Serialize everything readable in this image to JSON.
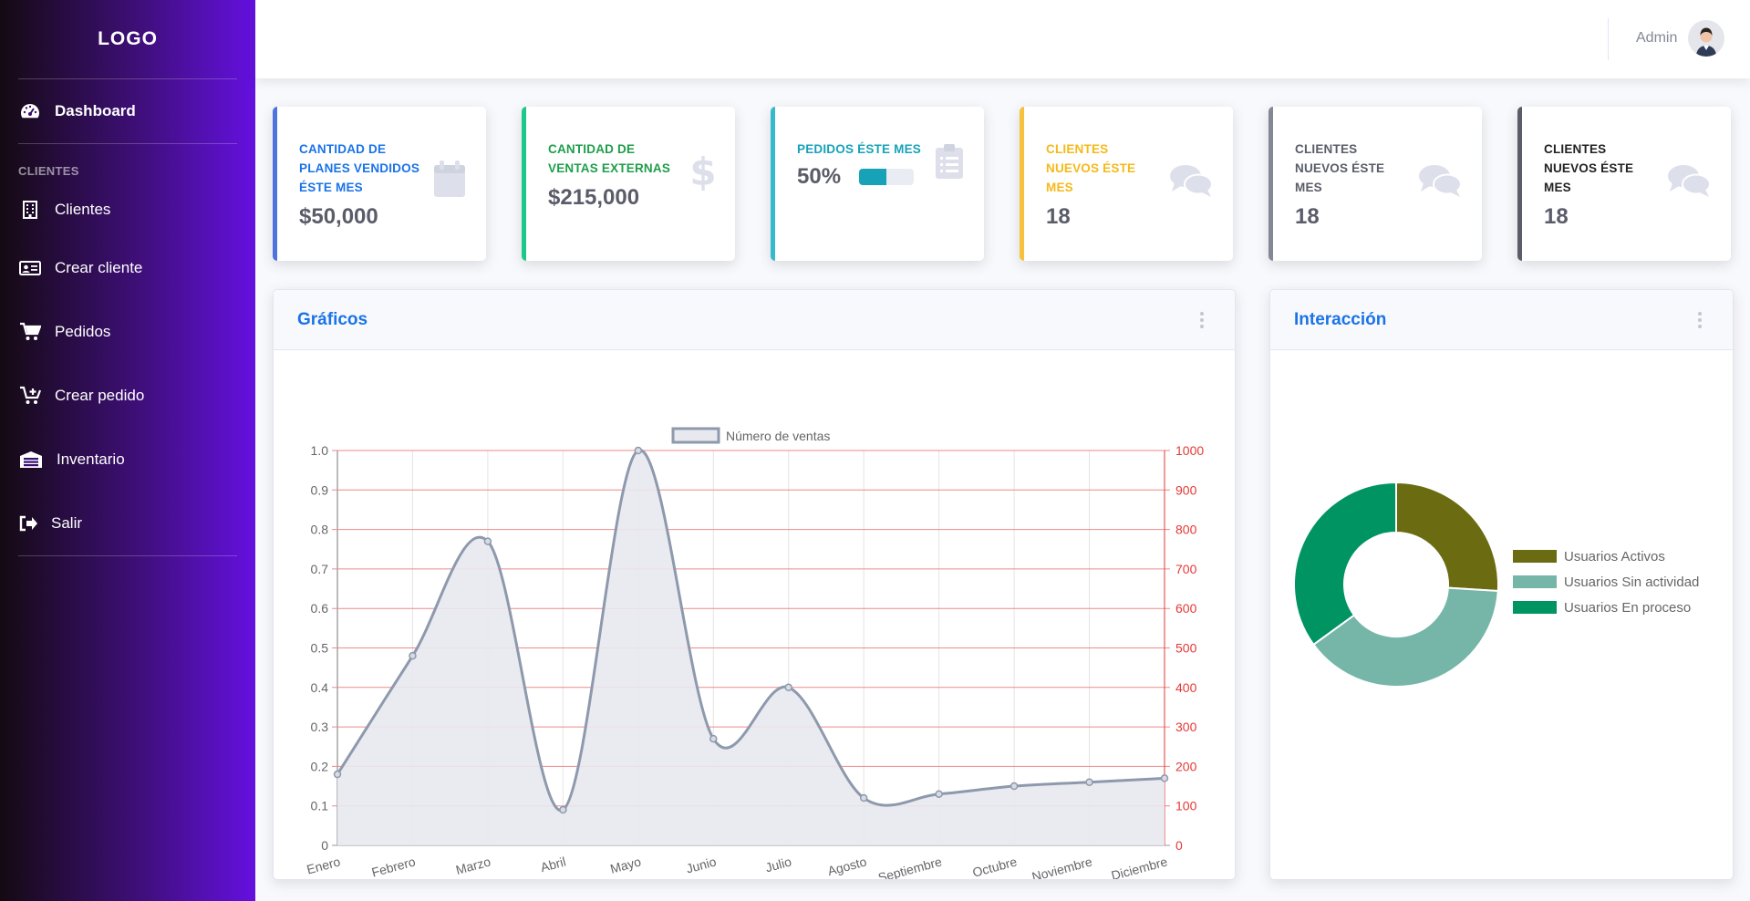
{
  "sidebar": {
    "brand": "LOGO",
    "dashboard": "Dashboard",
    "heading": "CLIENTES",
    "items": [
      {
        "label": "Clientes",
        "icon": "building-icon"
      },
      {
        "label": "Crear cliente",
        "icon": "id-card-icon"
      },
      {
        "label": "Pedidos",
        "icon": "cart-icon"
      },
      {
        "label": "Crear pedido",
        "icon": "cart-plus-icon"
      },
      {
        "label": "Inventario",
        "icon": "warehouse-icon"
      },
      {
        "label": "Salir",
        "icon": "sign-out-icon"
      }
    ]
  },
  "topbar": {
    "user": "Admin"
  },
  "cards": [
    {
      "title": "CANTIDAD DE PLANES VENDIDOS ÉSTE MES",
      "value": "$50,000",
      "color": "#4e73df",
      "icon": "calendar-icon"
    },
    {
      "title": "CANTIDAD DE VENTAS EXTERNAS",
      "value": "$215,000",
      "color": "#1cc88a",
      "icon": "dollar-icon"
    },
    {
      "title": "PEDIDOS ÉSTE MES",
      "value": "50%",
      "progress": 0.5,
      "color": "#36b9cc",
      "icon": "clipboard-icon"
    },
    {
      "title": "CLIENTES NUEVOS ÉSTE MES",
      "value": "18",
      "color": "#f6c23e",
      "icon": "comments-icon"
    },
    {
      "title": "CLIENTES NUEVOS ÉSTE MES",
      "value": "18",
      "color": "#858796",
      "icon": "comments-icon"
    },
    {
      "title": "CLIENTES NUEVOS ÉSTE MES",
      "value": "18",
      "color": "#5a5c69",
      "icon": "comments-icon"
    }
  ],
  "panels": {
    "graficos": "Gráficos",
    "interaccion": "Interacción"
  },
  "chart_data": [
    {
      "type": "line",
      "title": "",
      "categories": [
        "Enero",
        "Febrero",
        "Marzo",
        "Abril",
        "Mayo",
        "Junio",
        "Julio",
        "Agosto",
        "Septiembre",
        "Octubre",
        "Noviembre",
        "Diciembre"
      ],
      "series": [
        {
          "name": "Número de ventas",
          "values": [
            0.18,
            0.48,
            0.77,
            0.09,
            1.0,
            0.27,
            0.4,
            0.12,
            0.13,
            0.15,
            0.16,
            0.17
          ]
        }
      ],
      "ylim": [
        0,
        1
      ],
      "yticks": [
        "0",
        "0.1",
        "0.2",
        "0.3",
        "0.4",
        "0.5",
        "0.6",
        "0.7",
        "0.8",
        "0.9",
        "1.0"
      ],
      "y2lim": [
        0,
        1000
      ],
      "y2ticks": [
        "0",
        "100",
        "200",
        "300",
        "400",
        "500",
        "600",
        "700",
        "800",
        "900",
        "1000"
      ],
      "legend": "top",
      "grid": true,
      "colors": {
        "line": "#8e99ad",
        "fill": "#e8e9ee",
        "grid_right": "#ee8a8a",
        "axis_right": "#e53935"
      }
    },
    {
      "type": "pie",
      "donut": true,
      "labels": [
        "Usuarios Activos",
        "Usuarios Sin actividad",
        "Usuarios En proceso"
      ],
      "values": [
        26,
        39,
        35
      ],
      "colors": [
        "#6b6b12",
        "#76b6a8",
        "#009462"
      ],
      "legend": "right"
    }
  ]
}
